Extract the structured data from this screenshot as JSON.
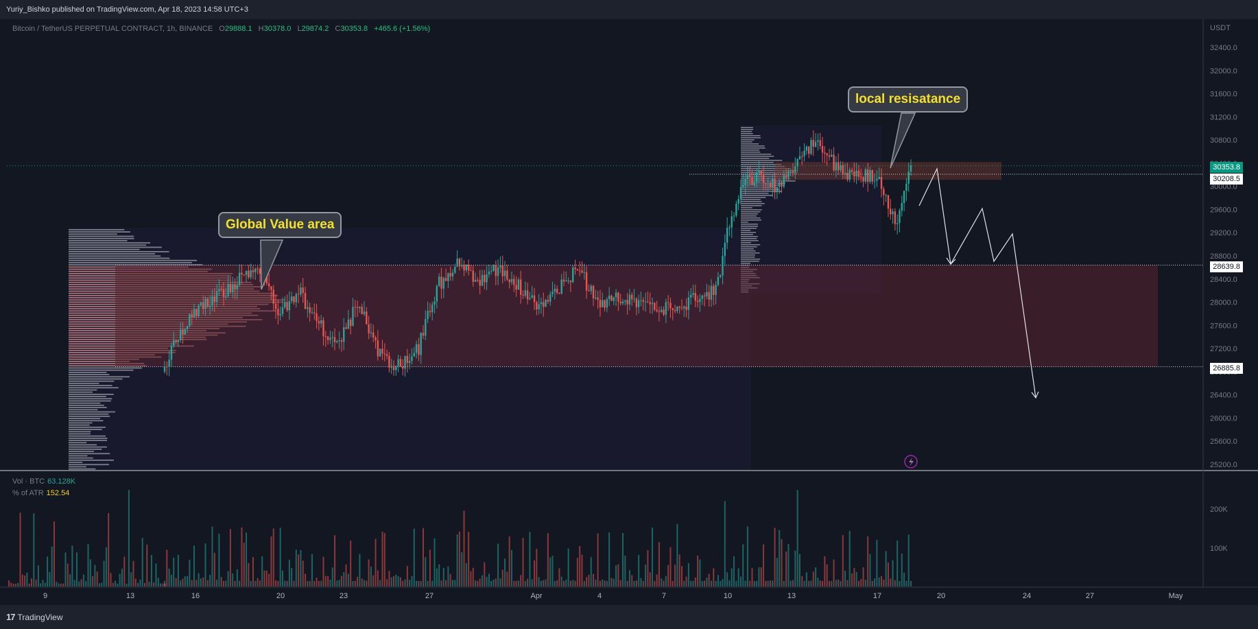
{
  "header": {
    "publisher_line": "Yuriy_Bishko published on TradingView.com, Apr 18, 2023 14:58 UTC+3"
  },
  "footer": {
    "brand": "TradingView"
  },
  "legend": {
    "symbol": "Bitcoin / TetherUS PERPETUAL CONTRACT, 1h, BINANCE",
    "o_label": "O",
    "o_value": "29888.1",
    "h_label": "H",
    "h_value": "30378.0",
    "l_label": "L",
    "l_value": "29874.2",
    "c_label": "C",
    "c_value": "30353.8",
    "change": "+465.6 (+1.56%)"
  },
  "volume_legend": {
    "vol_label": "Vol · BTC",
    "vol_value": "63.128K",
    "atr_label": "% of ATR",
    "atr_value": "152.54"
  },
  "annotations": {
    "global_value_area": "Global Value area",
    "local_resistance": "local resisatance"
  },
  "price_tags": {
    "current": "30353.8",
    "level_1": "30208.5",
    "level_2": "28639.8",
    "level_3": "26885.8"
  },
  "colors": {
    "up": "#26a69a",
    "down": "#ef5350",
    "current_tag": "#089981",
    "background": "#131722",
    "callout_text": "#f5e02c"
  },
  "chart_data": {
    "type": "candlestick",
    "interval": "1h",
    "currency": "USDT",
    "y_axis_labels": [
      "32400.0",
      "32000.0",
      "31600.0",
      "31200.0",
      "30800.0",
      "30400.0",
      "30000.0",
      "29600.0",
      "29200.0",
      "28800.0",
      "28400.0",
      "28000.0",
      "27600.0",
      "27200.0",
      "26800.0",
      "26400.0",
      "26000.0",
      "25600.0",
      "25200.0"
    ],
    "ylim": [
      25100,
      32500
    ],
    "x_axis_labels": [
      "9",
      "13",
      "16",
      "20",
      "23",
      "27",
      "Apr",
      "4",
      "7",
      "10",
      "13",
      "17",
      "20",
      "24",
      "27",
      "May"
    ],
    "volume_axis_labels": [
      "200K",
      "100K"
    ],
    "key_levels": [
      30208.5,
      28639.8,
      26885.8
    ],
    "last_close": 30353.8,
    "price_path_approx": [
      [
        0,
        25150
      ],
      [
        0.07,
        25150
      ],
      [
        0.075,
        26800
      ],
      [
        0.09,
        27500
      ],
      [
        0.11,
        27900
      ],
      [
        0.13,
        28100
      ],
      [
        0.15,
        28400
      ],
      [
        0.17,
        28600
      ],
      [
        0.19,
        27800
      ],
      [
        0.21,
        28200
      ],
      [
        0.23,
        27600
      ],
      [
        0.25,
        27300
      ],
      [
        0.27,
        28000
      ],
      [
        0.29,
        27100
      ],
      [
        0.31,
        26900
      ],
      [
        0.33,
        27200
      ],
      [
        0.35,
        28300
      ],
      [
        0.37,
        28700
      ],
      [
        0.39,
        28300
      ],
      [
        0.41,
        28600
      ],
      [
        0.43,
        28300
      ],
      [
        0.45,
        27900
      ],
      [
        0.47,
        28200
      ],
      [
        0.49,
        28600
      ],
      [
        0.51,
        28000
      ],
      [
        0.53,
        28100
      ],
      [
        0.55,
        28000
      ],
      [
        0.57,
        27900
      ],
      [
        0.59,
        27900
      ],
      [
        0.61,
        28100
      ],
      [
        0.63,
        28200
      ],
      [
        0.64,
        29200
      ],
      [
        0.655,
        30000
      ],
      [
        0.67,
        30200
      ],
      [
        0.69,
        30000
      ],
      [
        0.71,
        30400
      ],
      [
        0.73,
        30800
      ],
      [
        0.75,
        30300
      ],
      [
        0.77,
        30200
      ],
      [
        0.79,
        30200
      ],
      [
        0.8,
        29800
      ],
      [
        0.81,
        29300
      ],
      [
        0.825,
        30353.8
      ]
    ],
    "projected_path": [
      [
        30000,
        29700
      ],
      [
        30353.8,
        30300
      ],
      [
        28639.8,
        28700
      ],
      [
        29600,
        29600
      ],
      [
        28800,
        28800
      ],
      [
        29200,
        29200
      ],
      [
        26400,
        26400
      ]
    ]
  }
}
